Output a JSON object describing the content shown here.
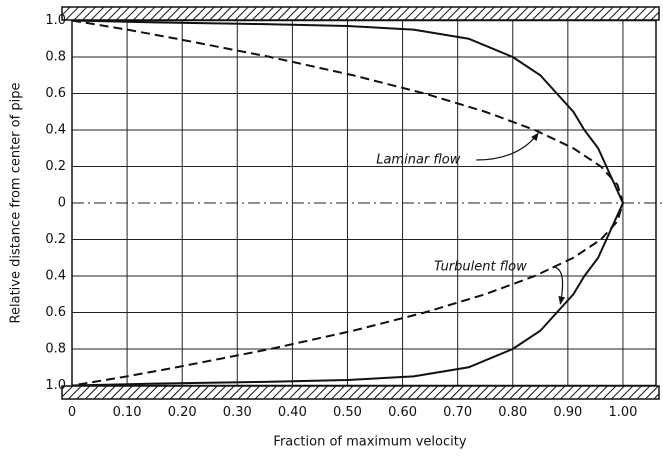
{
  "chart_data": {
    "type": "line",
    "xlabel": "Fraction of maximum velocity",
    "ylabel": "Relative distance from center of pipe",
    "y": [
      1,
      0.99,
      0.98,
      0.97,
      0.95,
      0.9,
      0.8,
      0.7,
      0.6,
      0.5,
      0.4,
      0.3,
      0.2,
      0.1,
      0,
      -0.1,
      -0.2,
      -0.3,
      -0.4,
      -0.5,
      -0.6,
      -0.7,
      -0.8,
      -0.9,
      -0.95,
      -0.97,
      -0.98,
      -0.99,
      -1
    ],
    "series": [
      {
        "name": "Laminar flow",
        "color": "#111111",
        "dash": true,
        "values": [
          0,
          0.02,
          0.04,
          0.06,
          0.1,
          0.19,
          0.36,
          0.51,
          0.64,
          0.75,
          0.84,
          0.91,
          0.96,
          0.99,
          1,
          0.99,
          0.96,
          0.91,
          0.84,
          0.75,
          0.64,
          0.51,
          0.36,
          0.19,
          0.1,
          0.06,
          0.04,
          0.02,
          0
        ]
      },
      {
        "name": "Turbulent flow",
        "color": "#111111",
        "dash": false,
        "values": [
          0,
          0.15,
          0.35,
          0.5,
          0.62,
          0.72,
          0.8,
          0.85,
          0.88,
          0.91,
          0.93,
          0.955,
          0.97,
          0.985,
          1,
          0.985,
          0.97,
          0.955,
          0.93,
          0.91,
          0.88,
          0.85,
          0.8,
          0.72,
          0.62,
          0.5,
          0.35,
          0.15,
          0
        ]
      }
    ],
    "annotations": [
      {
        "text": "Laminar flow",
        "x": 0.85,
        "y": 0.4
      },
      {
        "text": "Turbulent flow",
        "x": 0.89,
        "y": -0.57
      }
    ],
    "xlim": [
      0,
      1.06
    ],
    "ylim": [
      -1,
      1
    ],
    "xticks": [
      0,
      {
        "value": 0.1,
        "label": "0.10"
      },
      {
        "value": 0.2,
        "label": "0.20"
      },
      {
        "value": 0.3,
        "label": "0.30"
      },
      {
        "value": 0.4,
        "label": "0.40"
      },
      {
        "value": 0.5,
        "label": "0.50"
      },
      {
        "value": 0.6,
        "label": "0.60"
      },
      {
        "value": 0.7,
        "label": "0.70"
      },
      {
        "value": 0.8,
        "label": "0.80"
      },
      {
        "value": 0.9,
        "label": "0.90"
      },
      {
        "value": 1,
        "label": "1.00"
      }
    ],
    "yticks": [
      {
        "value": 1,
        "label": "1.0"
      },
      0.8,
      0.6,
      0.4,
      0.2,
      0,
      {
        "value": -0.2,
        "label": "0.2"
      },
      {
        "value": -0.4,
        "label": "0.4"
      },
      {
        "value": -0.6,
        "label": "0.6"
      },
      {
        "value": -0.8,
        "label": "0.8"
      },
      {
        "value": -1,
        "label": "1.0"
      }
    ],
    "grid": true
  }
}
